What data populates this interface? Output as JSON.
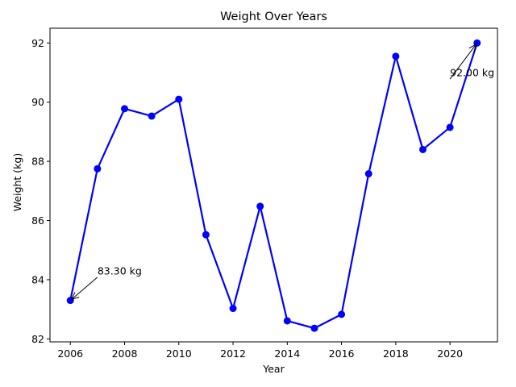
{
  "chart_data": {
    "type": "line",
    "title": "Weight Over Years",
    "xlabel": "Year",
    "ylabel": "Weight (kg)",
    "xlim": [
      2005.25,
      2021.75
    ],
    "ylim": [
      81.9,
      92.5
    ],
    "xticks": [
      2006,
      2008,
      2010,
      2012,
      2014,
      2016,
      2018,
      2020
    ],
    "yticks": [
      82,
      84,
      86,
      88,
      90,
      92
    ],
    "grid": false,
    "legend": "none",
    "series": [
      {
        "color": "#0000ff",
        "x": [
          2006,
          2007,
          2008,
          2009,
          2010,
          2011,
          2012,
          2013,
          2014,
          2015,
          2016,
          2017,
          2018,
          2019,
          2020,
          2021
        ],
        "y": [
          83.3,
          87.75,
          89.78,
          89.53,
          90.1,
          85.52,
          83.03,
          86.48,
          82.61,
          82.36,
          82.83,
          87.58,
          91.55,
          88.4,
          89.15,
          92.0
        ]
      }
    ],
    "annotations": [
      {
        "text": "83.30 kg",
        "x": 2006,
        "y": 83.3,
        "text_x": 2007,
        "text_y": 84.3
      },
      {
        "text": "92.00 kg",
        "x": 2021,
        "y": 92.0,
        "text_x": 2020,
        "text_y": 91.0
      }
    ]
  }
}
